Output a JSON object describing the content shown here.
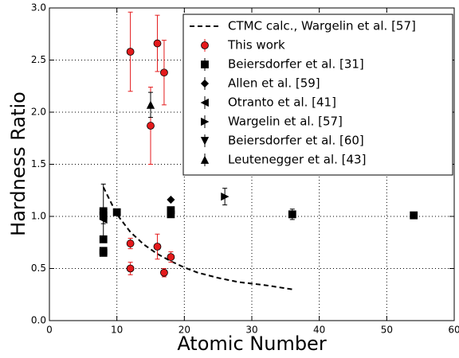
{
  "chart_data": {
    "type": "scatter",
    "x_label": "Atomic Number",
    "y_label": "Hardness Ratio",
    "xlim": [
      0,
      60
    ],
    "ylim": [
      0,
      3
    ],
    "xticks": [
      0,
      10,
      20,
      30,
      40,
      50,
      60
    ],
    "yticks": [
      {
        "value": 0,
        "label": "0.0"
      },
      0.5,
      {
        "value": 1,
        "label": "1.0"
      },
      1.5,
      {
        "value": 2,
        "label": "2.0"
      },
      2.5,
      {
        "value": 3,
        "label": "3.0"
      }
    ],
    "grid": true,
    "legend": "upper right",
    "series": [
      {
        "name": "CTMC calc., Wargelin et al. [57]",
        "style": "dashed",
        "color": "#000000",
        "x": [
          8,
          10,
          12,
          14,
          16,
          18,
          20,
          22,
          25,
          28,
          32,
          36
        ],
        "values": [
          1.28,
          1.02,
          0.85,
          0.73,
          0.64,
          0.57,
          0.51,
          0.46,
          0.41,
          0.37,
          0.34,
          0.3
        ]
      },
      {
        "name": "This work",
        "marker": "circle",
        "color": "#e41a1c",
        "x": [
          12,
          16,
          17,
          15,
          12,
          12,
          16,
          17,
          18
        ],
        "values": [
          2.58,
          2.66,
          2.38,
          1.87,
          0.74,
          0.5,
          0.71,
          0.46,
          0.61
        ],
        "errors": [
          0.38,
          0.27,
          0.31,
          0.37,
          0.05,
          0.06,
          0.12,
          0.04,
          0.05
        ]
      },
      {
        "name": "Beiersdorfer et al. [31]",
        "marker": "square",
        "color": "#000000",
        "x": [
          8,
          8,
          8,
          8,
          8,
          10,
          18,
          18,
          36,
          54
        ],
        "values": [
          1.05,
          1.01,
          0.78,
          0.67,
          0.65,
          1.04,
          1.06,
          1.02,
          1.02,
          1.01
        ],
        "errors": [
          0.03,
          0.03,
          0.03,
          0.03,
          0.03,
          0.02,
          0.03,
          0.03,
          0.05,
          0.02
        ]
      },
      {
        "name": "Allen et al. [59]",
        "marker": "diamond",
        "color": "#000000",
        "x": [
          18
        ],
        "values": [
          1.16
        ]
      },
      {
        "name": "Otranto et al. [41]",
        "marker": "triangle-left",
        "color": "#000000",
        "x": [
          8
        ],
        "values": [
          0.97
        ],
        "errors": [
          0.04
        ]
      },
      {
        "name": "Wargelin et al. [57]",
        "marker": "triangle-right",
        "color": "#000000",
        "x": [
          26
        ],
        "values": [
          1.19
        ],
        "errors": [
          0.08
        ]
      },
      {
        "name": "Beiersdorfer et al. [60]",
        "marker": "triangle-down",
        "color": "#000000",
        "x": [
          8
        ],
        "values": [
          1.03
        ],
        "errors": [
          0.28
        ]
      },
      {
        "name": "Leutenegger et al. [43]",
        "marker": "triangle-up",
        "color": "#000000",
        "x": [
          15
        ],
        "values": [
          2.07
        ],
        "errors": [
          0.12
        ]
      }
    ]
  }
}
